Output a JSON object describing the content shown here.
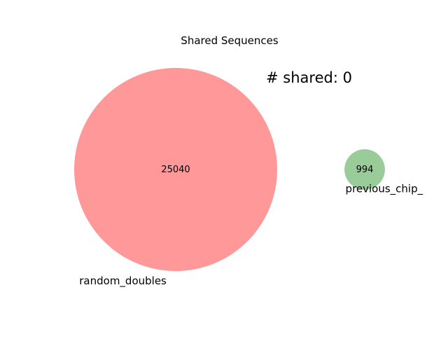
{
  "chart_data": {
    "type": "venn",
    "title": "Shared Sequences",
    "annotation": "# shared: 0",
    "sets": [
      {
        "name": "random_doubles",
        "count": 25040,
        "count_label": "25040",
        "color": "#ff9999"
      },
      {
        "name": "previous_chip_",
        "count": 994,
        "count_label": "994",
        "color": "#99cc99"
      }
    ],
    "intersection": {
      "count": 0
    }
  }
}
